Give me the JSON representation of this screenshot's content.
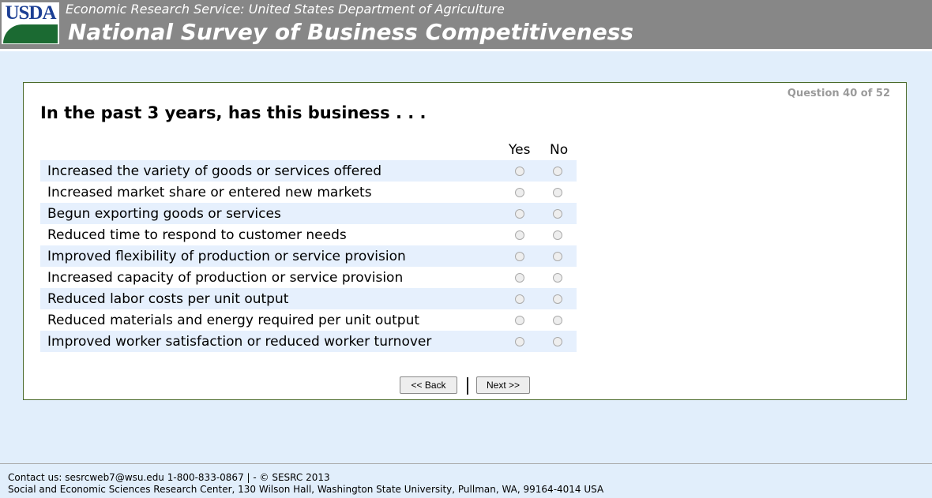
{
  "header": {
    "logo_text": "USDA",
    "subtitle": "Economic Research Service: United States Department of Agriculture",
    "title": "National Survey of Business Competitiveness"
  },
  "question": {
    "counter": "Question 40 of 52",
    "text": "In the past 3 years, has this business . . .",
    "col_yes": "Yes",
    "col_no": "No",
    "items": [
      {
        "label": "Increased the variety of goods or services offered"
      },
      {
        "label": "Increased market share or entered new markets"
      },
      {
        "label": "Begun exporting goods or services"
      },
      {
        "label": "Reduced time to respond to customer needs"
      },
      {
        "label": "Improved flexibility of production or service provision"
      },
      {
        "label": "Increased capacity of production or service provision"
      },
      {
        "label": "Reduced labor costs per unit output"
      },
      {
        "label": "Reduced materials and energy required per unit output"
      },
      {
        "label": "Improved worker satisfaction or reduced worker turnover"
      }
    ]
  },
  "nav": {
    "back": "<< Back",
    "next": "Next >>"
  },
  "footer": {
    "line1": "Contact us: sesrcweb7@wsu.edu 1-800-833-0867 | - © SESRC 2013",
    "line2": "Social and Economic Sciences Research Center, 130 Wilson Hall, Washington State University, Pullman, WA, 99164-4014 USA"
  }
}
